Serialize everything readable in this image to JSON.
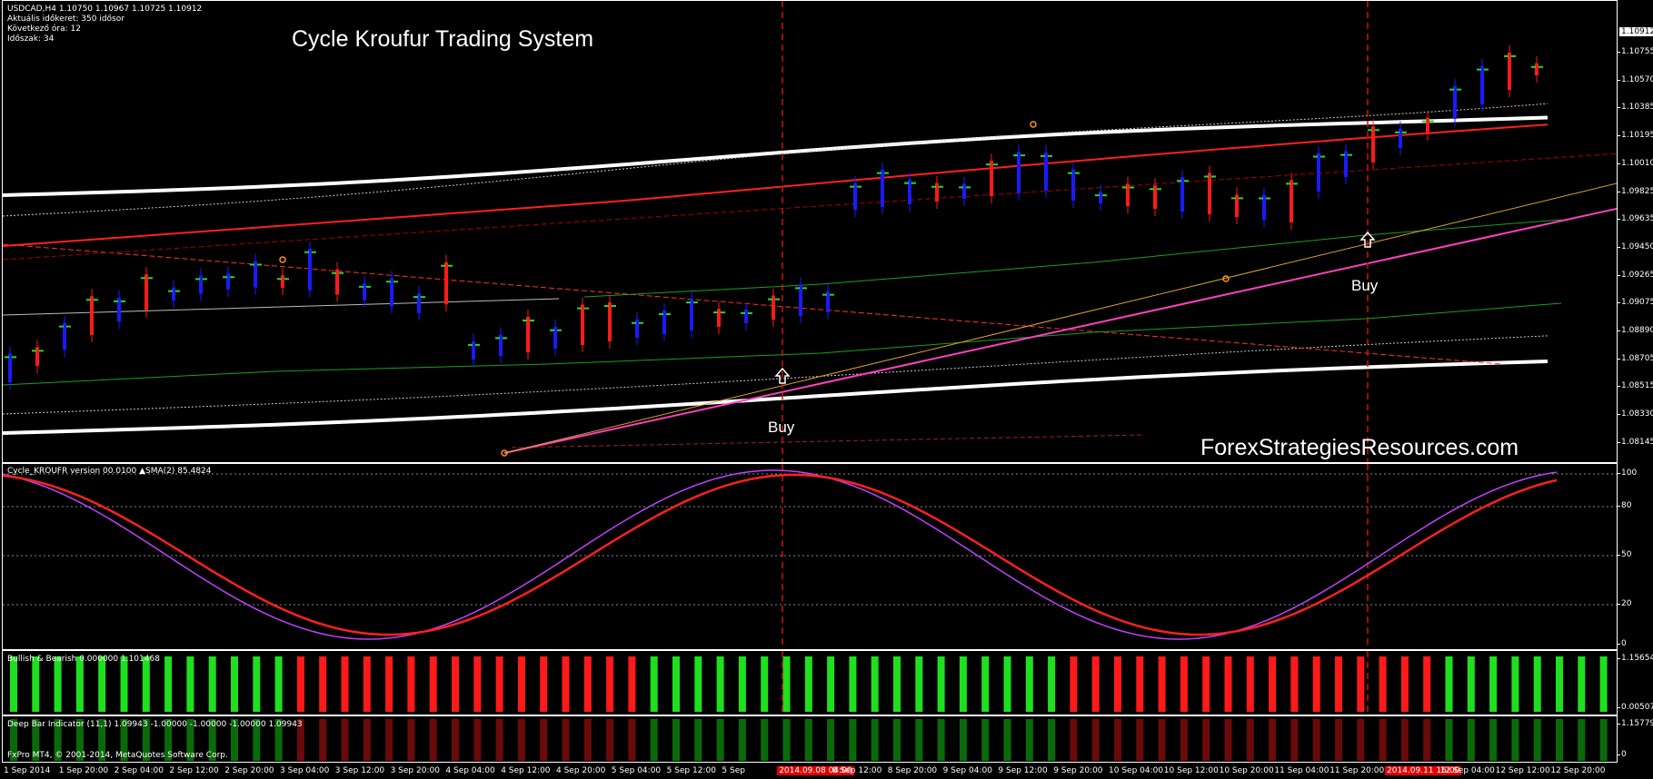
{
  "main": {
    "symbol_line": "USDCAD,H4  1.10750 1.10967 1.10725 1.10912",
    "info_lines": [
      "Aktuális időkeret: 350 idősor",
      "Következő óra: 12",
      "Időszak: 34"
    ],
    "title": "Cycle Kroufur Trading System",
    "watermark": "ForexStrategiesResources.com",
    "buy_label_1": "Buy",
    "buy_label_2": "Buy",
    "current_price": "1.10912",
    "price_scale": [
      "1.10755",
      "1.10570",
      "1.10385",
      "1.10195",
      "1.10010",
      "1.09825",
      "1.09635",
      "1.09450",
      "1.09265",
      "1.09075",
      "1.08890",
      "1.08705",
      "1.08515",
      "1.08330",
      "1.08145"
    ]
  },
  "cycle": {
    "label": "Cycle_KROUFR  version 00.0100   ▲SMA(2) 85.4824",
    "scale": [
      "100",
      "80",
      "50",
      "20",
      "0"
    ]
  },
  "bullbear": {
    "label": "Bullish & Bearish 0.000000 1.101468",
    "scale": [
      "1.156541",
      "0.00507"
    ],
    "bars": [
      1,
      1,
      1,
      1,
      1,
      1,
      1,
      1,
      1,
      1,
      1,
      1,
      1,
      0,
      0,
      0,
      0,
      0,
      0,
      0,
      0,
      0,
      0,
      0,
      0,
      0,
      0,
      0,
      0,
      1,
      1,
      1,
      1,
      1,
      1,
      1,
      1,
      1,
      1,
      1,
      1,
      1,
      1,
      1,
      1,
      1,
      1,
      1,
      0,
      0,
      0,
      0,
      0,
      0,
      0,
      0,
      0,
      0,
      0,
      0,
      0,
      0,
      0,
      0,
      0,
      1,
      1,
      1,
      1,
      1,
      1,
      1,
      1
    ]
  },
  "deepbar": {
    "label": "Deep Bar Indicator (11,1) 1.09943 -1.00000 -1.00000 -1.00000 1.09943",
    "scale": [
      "1.15779",
      "0"
    ],
    "copyright": "FxPro MT4, © 2001-2014, MetaQuotes Software Corp."
  },
  "xaxis": {
    "labels": [
      "1 Sep 2014",
      "1 Sep 20:00",
      "2 Sep 04:00",
      "2 Sep 12:00",
      "2 Sep 20:00",
      "3 Sep 04:00",
      "3 Sep 12:00",
      "3 Sep 20:00",
      "4 Sep 04:00",
      "4 Sep 12:00",
      "4 Sep 20:00",
      "5 Sep 04:00",
      "5 Sep 12:00",
      "5 Sep",
      "2014.09.08 04:00",
      "8 Sep 12:00",
      "8 Sep 20:00",
      "9 Sep 04:00",
      "9 Sep 12:00",
      "9 Sep 20:00",
      "10 Sep 04:00",
      "10 Sep 12:00",
      "10 Sep 20:00",
      "11 Sep 04:00",
      "11 Sep 20:00",
      "2014.09.11 16:00",
      "12 Sep 04:00",
      "12 Sep 12:00",
      "12 Sep 20:00"
    ]
  },
  "colors": {
    "bull": "#1ee01e",
    "bear": "#ff1a1a",
    "candle_bull": "#1a1aff",
    "sma": "#ff2020",
    "cycle": "#c040ff",
    "band": "#ffffff",
    "trend": "#ff40c0"
  }
}
